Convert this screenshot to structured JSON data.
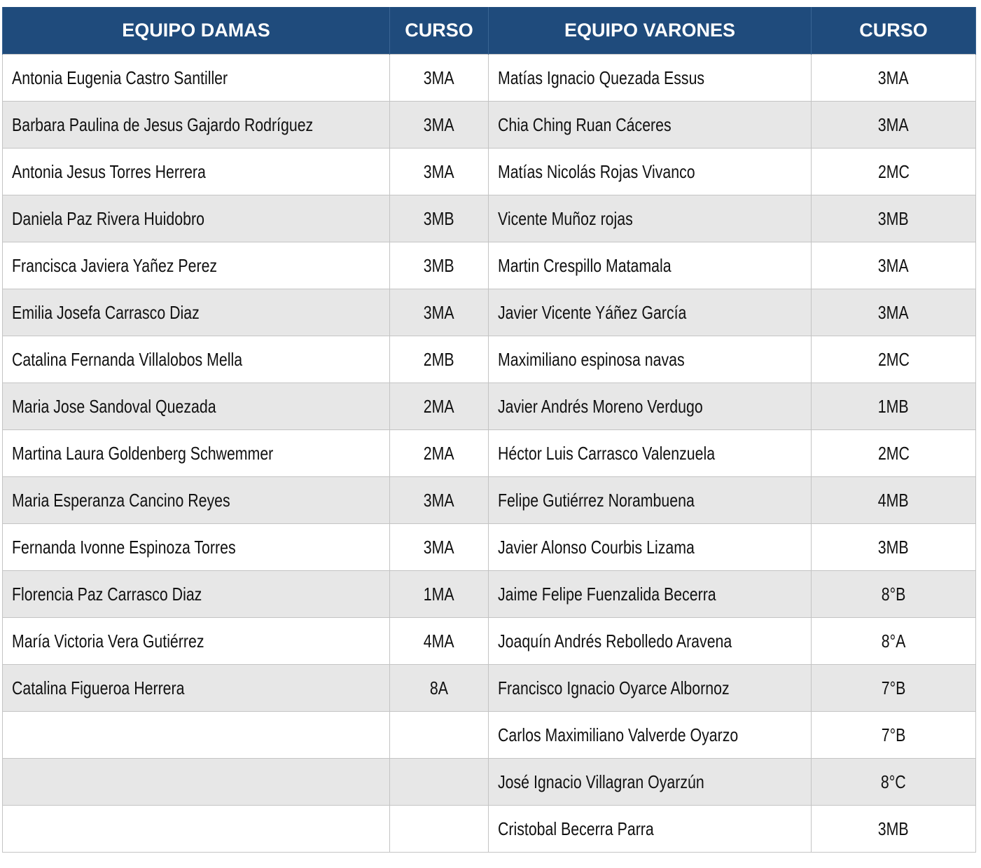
{
  "headers": {
    "damas": "EQUIPO DAMAS",
    "curso_damas": "CURSO",
    "varones": "EQUIPO VARONES",
    "curso_varones": "CURSO"
  },
  "rows": [
    {
      "dama": "Antonia Eugenia Castro Santiller",
      "dama_curso": "3MA",
      "varon": "Matías Ignacio Quezada Essus",
      "varon_curso": "3MA"
    },
    {
      "dama": "Barbara Paulina de Jesus Gajardo Rodríguez",
      "dama_curso": "3MA",
      "varon": "Chia Ching Ruan Cáceres",
      "varon_curso": "3MA"
    },
    {
      "dama": "Antonia Jesus Torres Herrera",
      "dama_curso": "3MA",
      "varon": "Matías Nicolás Rojas Vivanco",
      "varon_curso": "2MC"
    },
    {
      "dama": "Daniela Paz Rivera Huidobro",
      "dama_curso": "3MB",
      "varon": "Vicente Muñoz rojas",
      "varon_curso": "3MB"
    },
    {
      "dama": "Francisca Javiera Yañez Perez",
      "dama_curso": "3MB",
      "varon": "Martin Crespillo Matamala",
      "varon_curso": "3MA"
    },
    {
      "dama": "Emilia Josefa Carrasco Diaz",
      "dama_curso": "3MA",
      "varon": "Javier Vicente Yáñez García",
      "varon_curso": "3MA"
    },
    {
      "dama": "Catalina Fernanda Villalobos Mella",
      "dama_curso": "2MB",
      "varon": "Maximiliano espinosa navas",
      "varon_curso": "2MC"
    },
    {
      "dama": "Maria Jose Sandoval Quezada",
      "dama_curso": "2MA",
      "varon": "Javier Andrés Moreno Verdugo",
      "varon_curso": "1MB"
    },
    {
      "dama": "Martina Laura Goldenberg Schwemmer",
      "dama_curso": "2MA",
      "varon": "Héctor Luis Carrasco Valenzuela",
      "varon_curso": "2MC"
    },
    {
      "dama": "Maria Esperanza Cancino Reyes",
      "dama_curso": "3MA",
      "varon": "Felipe Gutiérrez Norambuena",
      "varon_curso": "4MB"
    },
    {
      "dama": "Fernanda Ivonne Espinoza Torres",
      "dama_curso": "3MA",
      "varon": "Javier Alonso Courbis Lizama",
      "varon_curso": "3MB"
    },
    {
      "dama": "Florencia Paz Carrasco Diaz",
      "dama_curso": "1MA",
      "varon": "Jaime Felipe Fuenzalida Becerra",
      "varon_curso": "8°B"
    },
    {
      "dama": "María Victoria Vera Gutiérrez",
      "dama_curso": "4MA",
      "varon": "Joaquín Andrés Rebolledo Aravena",
      "varon_curso": "8°A"
    },
    {
      "dama": "Catalina Figueroa Herrera",
      "dama_curso": "8A",
      "varon": "Francisco Ignacio Oyarce Albornoz",
      "varon_curso": "7°B"
    },
    {
      "dama": "",
      "dama_curso": "",
      "varon": "Carlos Maximiliano Valverde Oyarzo",
      "varon_curso": "7°B"
    },
    {
      "dama": "",
      "dama_curso": "",
      "varon": "José Ignacio Villagran Oyarzún",
      "varon_curso": "8°C"
    },
    {
      "dama": "",
      "dama_curso": "",
      "varon": "Cristobal Becerra Parra",
      "varon_curso": "3MB"
    }
  ]
}
